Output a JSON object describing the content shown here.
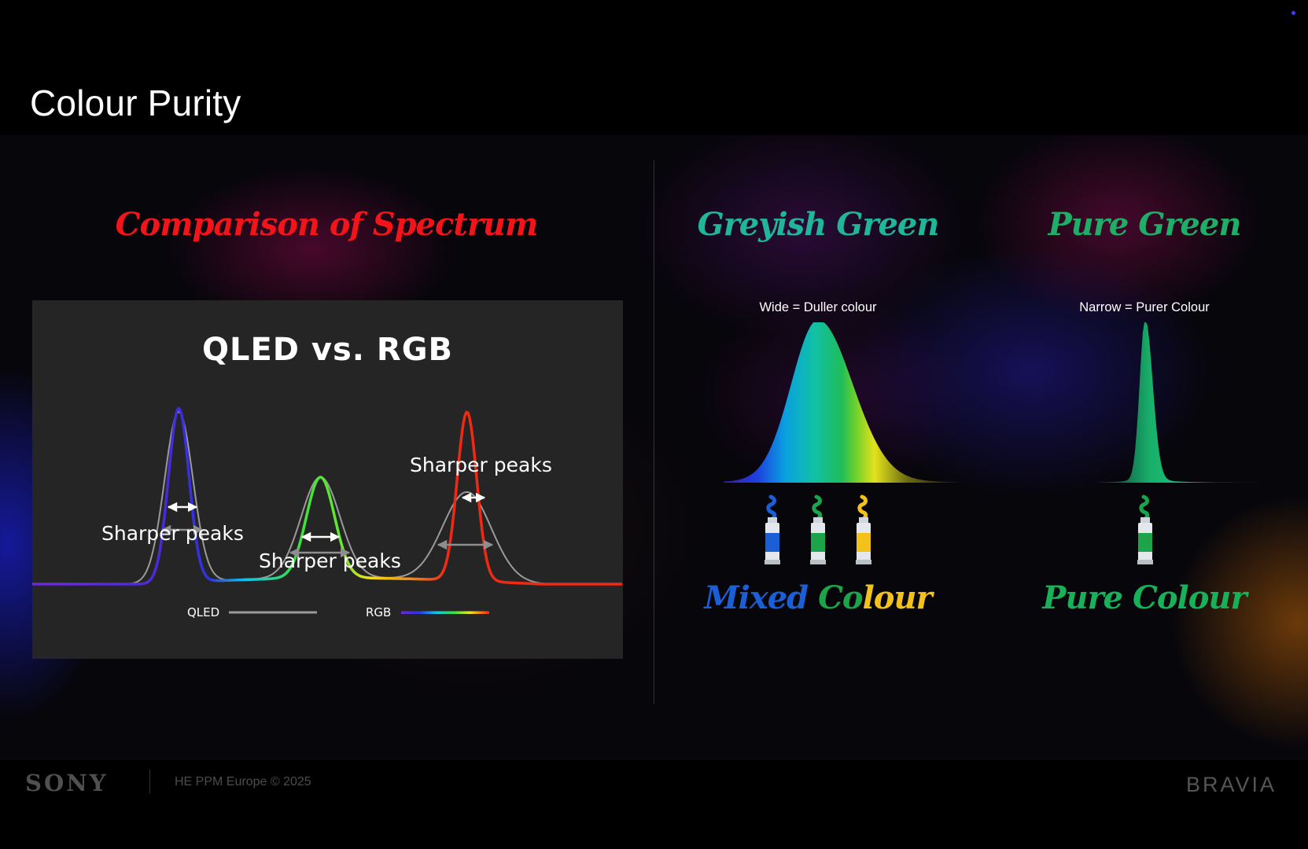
{
  "header": {
    "title": "Colour Purity"
  },
  "left": {
    "heading": "Comparison of Spectrum"
  },
  "chart_data": {
    "type": "line",
    "title": "QLED vs. RGB",
    "series": [
      {
        "name": "QLED",
        "color": "#9a9a9a",
        "peaks": [
          {
            "x": 0.248,
            "height": 0.98,
            "width": 0.024
          },
          {
            "x": 0.488,
            "height": 0.58,
            "width": 0.033
          },
          {
            "x": 0.736,
            "height": 0.51,
            "width": 0.041
          }
        ]
      },
      {
        "name": "RGB",
        "colors": [
          "#6a2bd6",
          "#2b35e0",
          "#12c6e8",
          "#3ae03c",
          "#f1e21a",
          "#f08a18",
          "#f02a12"
        ],
        "peaks": [
          {
            "x": 0.248,
            "height": 1.0,
            "width": 0.0175
          },
          {
            "x": 0.488,
            "height": 0.58,
            "width": 0.024
          },
          {
            "x": 0.736,
            "height": 0.97,
            "width": 0.0165
          }
        ]
      }
    ],
    "baseline_level": 0.13,
    "annotations": [
      "Sharper peaks",
      "Sharper peaks",
      "Sharper peaks"
    ],
    "legend": [
      "QLED",
      "RGB"
    ],
    "legend_position": "bottom",
    "xlabel": "",
    "ylabel": "",
    "grid": false
  },
  "right": {
    "greyish": {
      "heading": "Greyish Green",
      "caption": "Wide = Duller colour",
      "tube_icons": [
        "blue-paint-tube-icon",
        "green-paint-tube-icon",
        "yellow-paint-tube-icon"
      ],
      "bottom_heading_parts": [
        "Mixed ",
        "Co",
        "lour"
      ]
    },
    "pure": {
      "heading": "Pure Green",
      "caption": "Narrow = Purer Colour",
      "tube_icons": [
        "green-paint-tube-icon"
      ],
      "bottom_heading": "Pure Colour"
    },
    "colors": {
      "blue": "#1b5fd6",
      "green": "#1da44a",
      "yellow": "#f2c21a"
    }
  },
  "footer": {
    "brand_left": "SONY",
    "copyright": "HE PPM Europe © 2025",
    "brand_right": "BRAVIA"
  }
}
